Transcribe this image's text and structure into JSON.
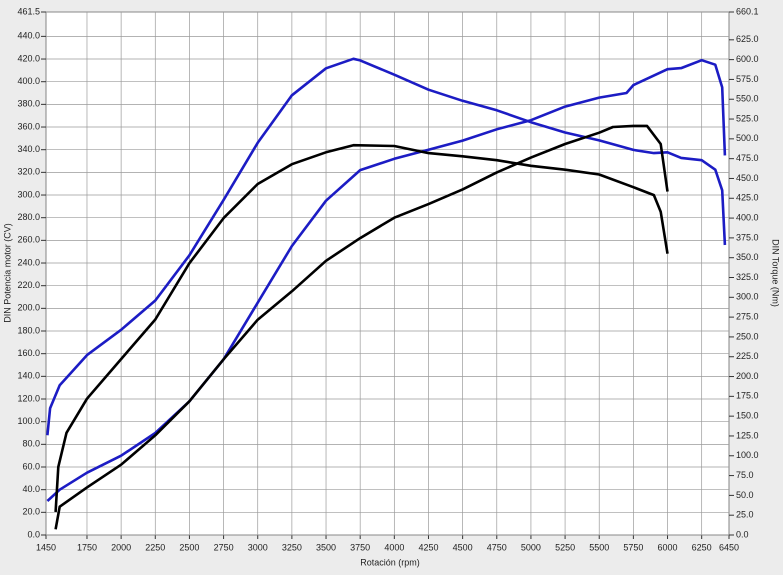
{
  "chart_data": {
    "type": "line",
    "xlabel": "Rotación (rpm)",
    "ylabel": "DIN Potencia motor (CV)",
    "y2label": "DIN Torque (Nm)",
    "xlim": [
      1450,
      6450
    ],
    "xticks": [
      1450,
      1750,
      2000,
      2250,
      2500,
      2750,
      3000,
      3250,
      3500,
      3750,
      4000,
      4250,
      4500,
      4750,
      5000,
      5250,
      5500,
      5750,
      6000,
      6250,
      6450
    ],
    "ylim": [
      0,
      461.5
    ],
    "yticks": [
      {
        "value": 0,
        "label": "0.0"
      },
      {
        "value": 20,
        "label": "20.0"
      },
      {
        "value": 40,
        "label": "40.0"
      },
      {
        "value": 60,
        "label": "60.0"
      },
      {
        "value": 80,
        "label": "80.0"
      },
      {
        "value": 100,
        "label": "100.0"
      },
      {
        "value": 120,
        "label": "120.0"
      },
      {
        "value": 140,
        "label": "140.0"
      },
      {
        "value": 160,
        "label": "160.0"
      },
      {
        "value": 180,
        "label": "180.0"
      },
      {
        "value": 200,
        "label": "200.0"
      },
      {
        "value": 220,
        "label": "220.0"
      },
      {
        "value": 240,
        "label": "240.0"
      },
      {
        "value": 260,
        "label": "260.0"
      },
      {
        "value": 280,
        "label": "280.0"
      },
      {
        "value": 300,
        "label": "300.0"
      },
      {
        "value": 320,
        "label": "320.0"
      },
      {
        "value": 340,
        "label": "340.0"
      },
      {
        "value": 360,
        "label": "360.0"
      },
      {
        "value": 380,
        "label": "380.0"
      },
      {
        "value": 400,
        "label": "400.0"
      },
      {
        "value": 420,
        "label": "420.0"
      },
      {
        "value": 440,
        "label": "440.0"
      },
      {
        "value": 461.5,
        "label": "461.5"
      }
    ],
    "y2lim": [
      0,
      660.1
    ],
    "y2ticks": [
      {
        "value": 0,
        "label": "0.0"
      },
      {
        "value": 25,
        "label": "25.0"
      },
      {
        "value": 50,
        "label": "50.0"
      },
      {
        "value": 75,
        "label": "75.0"
      },
      {
        "value": 100,
        "label": "100.0"
      },
      {
        "value": 125,
        "label": "125.0"
      },
      {
        "value": 150,
        "label": "150.0"
      },
      {
        "value": 175,
        "label": "175.0"
      },
      {
        "value": 200,
        "label": "200.0"
      },
      {
        "value": 225,
        "label": "225.0"
      },
      {
        "value": 250,
        "label": "250.0"
      },
      {
        "value": 275,
        "label": "275.0"
      },
      {
        "value": 300,
        "label": "300.0"
      },
      {
        "value": 325,
        "label": "325.0"
      },
      {
        "value": 350,
        "label": "350.0"
      },
      {
        "value": 375,
        "label": "375.0"
      },
      {
        "value": 400,
        "label": "400.0"
      },
      {
        "value": 425,
        "label": "425.0"
      },
      {
        "value": 450,
        "label": "450.0"
      },
      {
        "value": 475,
        "label": "475.0"
      },
      {
        "value": 500,
        "label": "500.0"
      },
      {
        "value": 525,
        "label": "525.0"
      },
      {
        "value": 550,
        "label": "550.0"
      },
      {
        "value": 575,
        "label": "575.0"
      },
      {
        "value": 600,
        "label": "600.0"
      },
      {
        "value": 625,
        "label": "625.0"
      },
      {
        "value": 660.1,
        "label": "660.1"
      }
    ],
    "grid": true,
    "series": [
      {
        "color": "#1c1cc4",
        "x": [
          1460,
          1550,
          1750,
          2000,
          2250,
          2500,
          2750,
          3000,
          3250,
          3500,
          3750,
          4000,
          4250,
          4500,
          4750,
          5000,
          5250,
          5500,
          5700,
          5750,
          6000,
          6100,
          6250,
          6350,
          6400,
          6420
        ],
        "values": [
          30,
          40,
          55,
          70,
          90,
          118,
          155,
          205,
          255,
          295,
          322,
          332,
          340,
          348,
          358,
          366,
          378,
          386,
          390,
          397,
          411,
          412,
          419,
          415,
          395,
          335
        ]
      },
      {
        "color": "#1c1cc4",
        "axis": "y2",
        "x": [
          1460,
          1480,
          1550,
          1750,
          2000,
          2250,
          2500,
          2750,
          3000,
          3250,
          3500,
          3700,
          3750,
          4000,
          4250,
          4500,
          4750,
          5000,
          5250,
          5500,
          5750,
          5900,
          6000,
          6100,
          6250,
          6350,
          6400,
          6420
        ],
        "values": [
          126,
          160,
          189,
          227,
          259,
          296,
          353,
          423,
          495,
          555,
          589,
          601,
          599,
          581,
          562,
          548,
          536,
          521,
          508,
          498,
          486,
          482,
          483,
          476,
          473,
          461,
          435,
          366
        ]
      },
      {
        "color": "#000000",
        "x": [
          1520,
          1550,
          1750,
          2000,
          2250,
          2500,
          2750,
          3000,
          3250,
          3500,
          3750,
          4000,
          4250,
          4500,
          4750,
          5000,
          5250,
          5500,
          5600,
          5750,
          5850,
          5950,
          6000
        ],
        "values": [
          5,
          25,
          42,
          62,
          88,
          118,
          155,
          190,
          215,
          242,
          262,
          280,
          292,
          305,
          320,
          333,
          345,
          355,
          360,
          361,
          361,
          345,
          303
        ]
      },
      {
        "color": "#000000",
        "axis": "y2",
        "x": [
          1520,
          1540,
          1600,
          1750,
          2000,
          2250,
          2500,
          2750,
          3000,
          3250,
          3500,
          3700,
          4000,
          4250,
          4500,
          4750,
          5000,
          5250,
          5500,
          5750,
          5900,
          5950,
          6000
        ],
        "values": [
          29,
          86,
          129,
          172,
          222,
          272,
          343,
          400,
          443,
          468,
          483,
          492,
          491,
          482,
          478,
          473,
          466,
          461,
          455,
          439,
          429,
          408,
          355
        ]
      }
    ]
  }
}
